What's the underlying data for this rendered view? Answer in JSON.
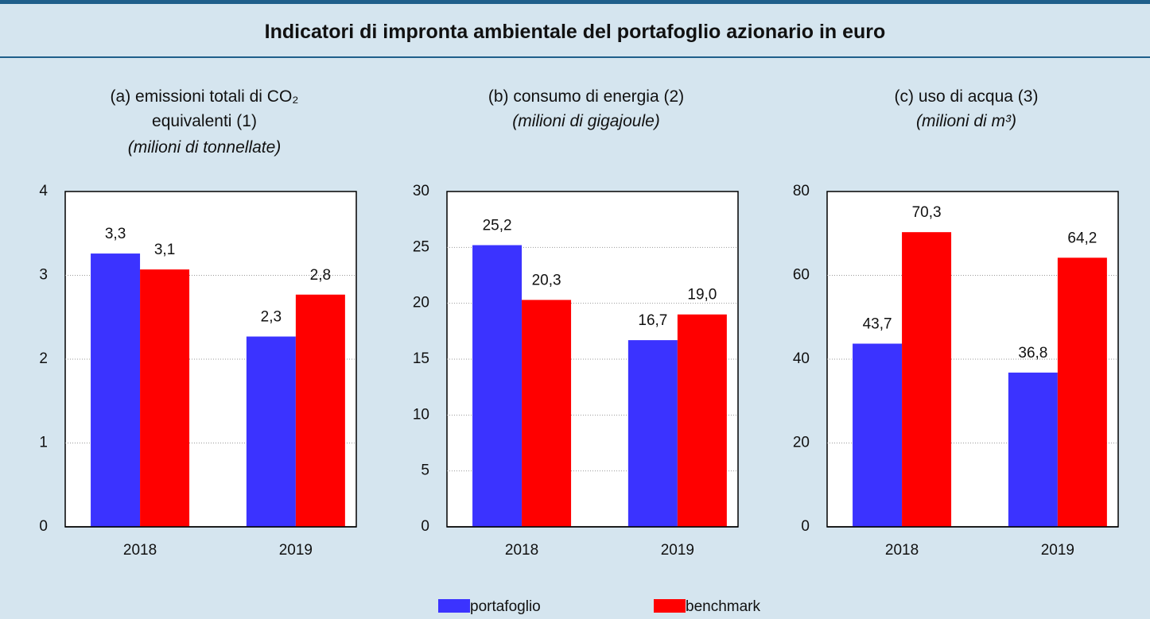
{
  "title": "Indicatori di impronta ambientale del portafoglio azionario in euro",
  "legend": [
    {
      "name": "portafoglio",
      "color": "#3b33ff"
    },
    {
      "name": "benchmark",
      "color": "#ff0000"
    }
  ],
  "chart_data": [
    {
      "type": "bar",
      "title": "(a) emissioni totali di CO₂ equivalenti (1)",
      "unit": "(milioni di tonnellate)",
      "categories": [
        "2018",
        "2019"
      ],
      "series": [
        {
          "values": [
            3.26,
            2.27
          ],
          "value_labels": [
            "3,3",
            "2,3"
          ]
        },
        {
          "values": [
            3.07,
            2.77
          ],
          "value_labels": [
            "3,1",
            "2,8"
          ]
        }
      ],
      "ylim": [
        0,
        4
      ],
      "yticks": [
        0,
        1,
        2,
        3,
        4
      ],
      "grid": true
    },
    {
      "type": "bar",
      "title": "(b) consumo di energia (2)",
      "unit": "(milioni di gigajoule)",
      "categories": [
        "2018",
        "2019"
      ],
      "series": [
        {
          "values": [
            25.2,
            16.7
          ],
          "value_labels": [
            "25,2",
            "16,7"
          ]
        },
        {
          "values": [
            20.3,
            19.0
          ],
          "value_labels": [
            "20,3",
            "19,0"
          ]
        }
      ],
      "ylim": [
        0,
        30
      ],
      "yticks": [
        0,
        5,
        10,
        15,
        20,
        25,
        30
      ],
      "grid": true
    },
    {
      "type": "bar",
      "title": "(c) uso di acqua (3)",
      "unit": "(milioni di m³)",
      "categories": [
        "2018",
        "2019"
      ],
      "series": [
        {
          "values": [
            43.7,
            36.8
          ],
          "value_labels": [
            "43,7",
            "36,8"
          ]
        },
        {
          "values": [
            70.3,
            64.2
          ],
          "value_labels": [
            "70,3",
            "64,2"
          ]
        }
      ],
      "ylim": [
        0,
        80
      ],
      "yticks": [
        0,
        20,
        40,
        60,
        80
      ],
      "grid": true
    }
  ]
}
